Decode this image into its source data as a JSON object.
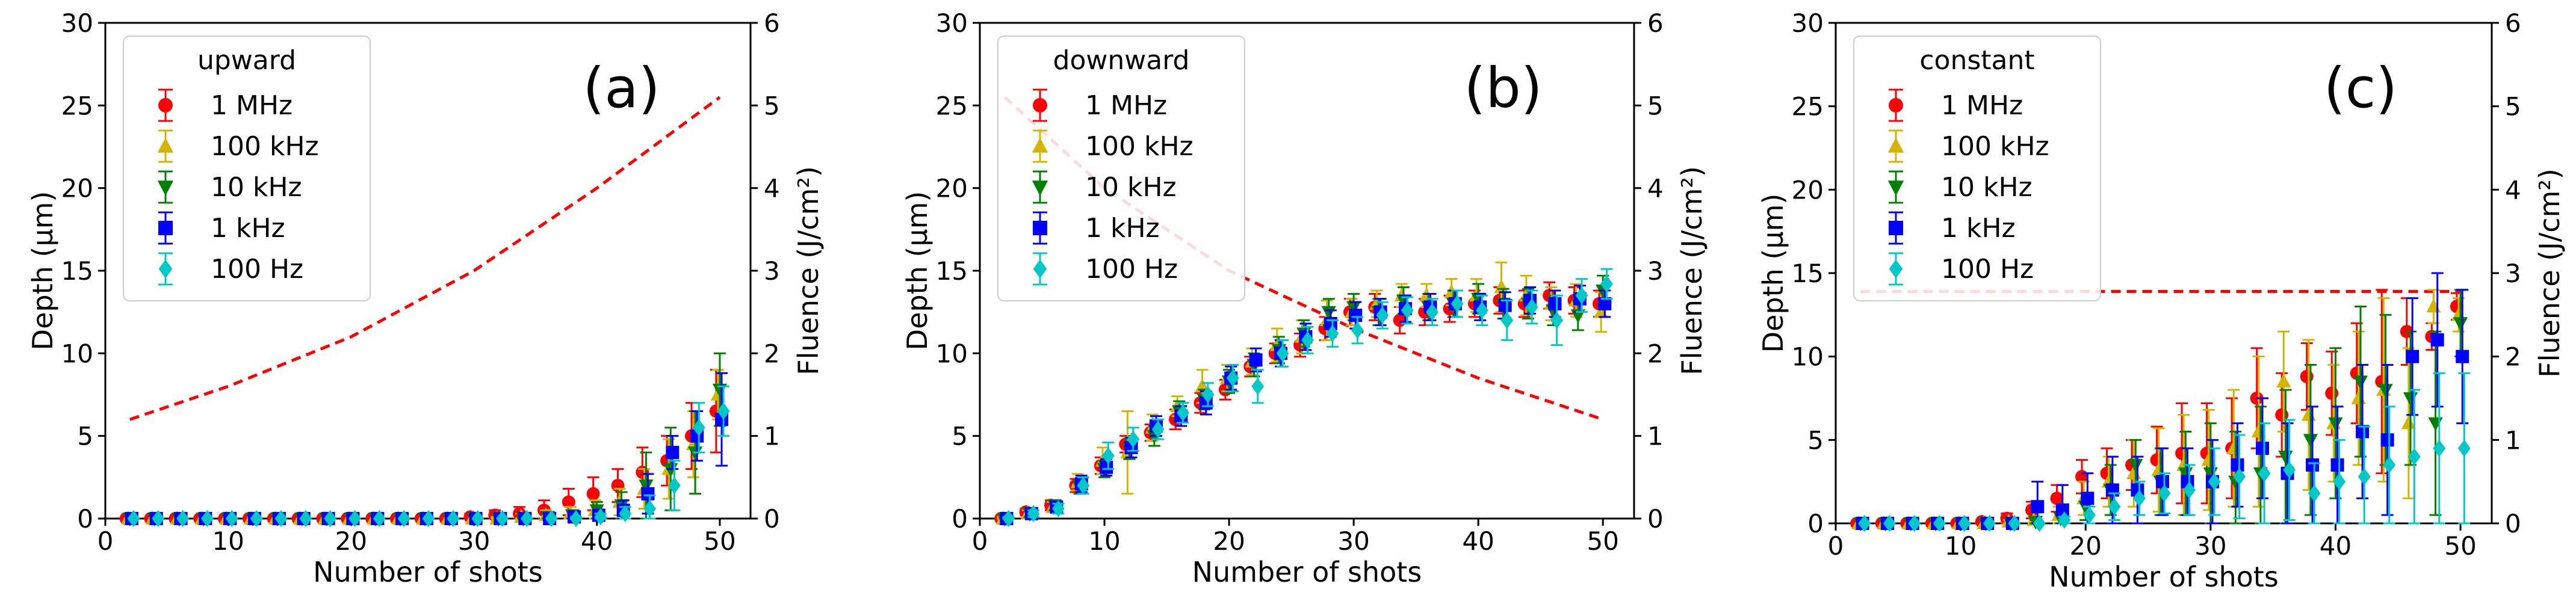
{
  "figure": {
    "colors": {
      "1 MHz": "#ff0000",
      "100 kHz": "#d4b400",
      "10 kHz": "#008000",
      "1 kHz": "#0000ff",
      "100 Hz": "#00c8c8",
      "fluence_line": "#ff0000"
    }
  },
  "chart_data": [
    {
      "type": "scatter",
      "panel_label": "(a)",
      "legend_title": "upward",
      "legend_position": "top-left",
      "xlabel": "Number of shots",
      "ylabel": "Depth (μm)",
      "y2label": "Fluence (J/cm²)",
      "xlim": [
        0,
        52.5
      ],
      "ylim": [
        0,
        30
      ],
      "y2lim": [
        0,
        6
      ],
      "xticks": [
        0,
        10,
        20,
        30,
        40,
        50
      ],
      "yticks": [
        0,
        5,
        10,
        15,
        20,
        25,
        30
      ],
      "y2ticks": [
        0,
        1,
        2,
        3,
        4,
        5,
        6
      ],
      "x": [
        2,
        4,
        6,
        8,
        10,
        12,
        14,
        16,
        18,
        20,
        22,
        24,
        26,
        28,
        30,
        32,
        34,
        36,
        38,
        40,
        42,
        44,
        46,
        48,
        50
      ],
      "series": [
        {
          "name": "1 MHz",
          "marker": "circle",
          "values": [
            0,
            0,
            0,
            0,
            0,
            0,
            0,
            0,
            0,
            0,
            0,
            0,
            0,
            0,
            0.1,
            0.2,
            0.3,
            0.5,
            1.0,
            1.5,
            2.0,
            2.8,
            3.5,
            5.0,
            6.5
          ],
          "errors": [
            0,
            0,
            0,
            0,
            0,
            0,
            0,
            0,
            0,
            0,
            0,
            0,
            0,
            0,
            0.2,
            0.3,
            0.4,
            0.6,
            0.8,
            1.0,
            1.0,
            1.5,
            1.5,
            2.0,
            2.5
          ]
        },
        {
          "name": "100 kHz",
          "marker": "triangle-up",
          "values": [
            0,
            0,
            0,
            0,
            0,
            0,
            0,
            0,
            0,
            0,
            0,
            0,
            0,
            0,
            0,
            0,
            0.1,
            0.2,
            0.3,
            0.5,
            1.0,
            1.8,
            3.0,
            4.5,
            7.5
          ],
          "errors": [
            0,
            0,
            0,
            0,
            0,
            0,
            0,
            0,
            0,
            0,
            0,
            0,
            0,
            0,
            0,
            0.1,
            0.2,
            0.3,
            0.4,
            0.6,
            0.8,
            1.2,
            1.8,
            2.0,
            1.5
          ]
        },
        {
          "name": "10 kHz",
          "marker": "triangle-down",
          "values": [
            0,
            0,
            0,
            0,
            0,
            0,
            0,
            0,
            0,
            0,
            0,
            0,
            0,
            0,
            0,
            0,
            0,
            0.1,
            0.2,
            0.5,
            0.8,
            2.0,
            3.0,
            4.0,
            7.8
          ],
          "errors": [
            0,
            0,
            0,
            0,
            0,
            0,
            0,
            0,
            0,
            0,
            0,
            0,
            0,
            0,
            0,
            0,
            0.1,
            0.2,
            0.3,
            0.5,
            0.8,
            2.0,
            2.5,
            2.5,
            2.2
          ]
        },
        {
          "name": "1 kHz",
          "marker": "square",
          "values": [
            0,
            0,
            0,
            0,
            0,
            0,
            0,
            0,
            0,
            0,
            0,
            0,
            0,
            0,
            0,
            0,
            0,
            0,
            0.1,
            0.2,
            0.5,
            1.5,
            4.0,
            5.0,
            6.0
          ],
          "errors": [
            0,
            0,
            0,
            0,
            0,
            0,
            0,
            0,
            0,
            0,
            0,
            0,
            0,
            0,
            0,
            0,
            0,
            0.1,
            0.2,
            0.3,
            0.6,
            1.2,
            1.0,
            1.5,
            2.8
          ]
        },
        {
          "name": "100 Hz",
          "marker": "diamond",
          "values": [
            0,
            0,
            0,
            0,
            0,
            0,
            0,
            0,
            0,
            0,
            0,
            0,
            0,
            0,
            0,
            0,
            0,
            0,
            0,
            0.1,
            0.3,
            0.6,
            2.0,
            5.5,
            6.5
          ],
          "errors": [
            0,
            0,
            0,
            0,
            0,
            0,
            0,
            0,
            0,
            0,
            0,
            0,
            0,
            0,
            0,
            0,
            0,
            0,
            0.1,
            0.2,
            0.4,
            0.8,
            1.5,
            1.5,
            1.5
          ]
        }
      ],
      "fluence": {
        "x": [
          2,
          10,
          20,
          30,
          40,
          50
        ],
        "values": [
          1.2,
          1.6,
          2.2,
          3.0,
          4.0,
          5.1
        ]
      }
    },
    {
      "type": "scatter",
      "panel_label": "(b)",
      "legend_title": "downward",
      "legend_position": "top-left",
      "xlabel": "Number of shots",
      "ylabel": "Depth (μm)",
      "y2label": "Fluence (J/cm²)",
      "xlim": [
        0,
        52.5
      ],
      "ylim": [
        0,
        30
      ],
      "y2lim": [
        0,
        6
      ],
      "xticks": [
        0,
        10,
        20,
        30,
        40,
        50
      ],
      "yticks": [
        0,
        5,
        10,
        15,
        20,
        25,
        30
      ],
      "y2ticks": [
        0,
        1,
        2,
        3,
        4,
        5,
        6
      ],
      "x": [
        2,
        4,
        6,
        8,
        10,
        12,
        14,
        16,
        18,
        20,
        22,
        24,
        26,
        28,
        30,
        32,
        34,
        36,
        38,
        40,
        42,
        44,
        46,
        48,
        50
      ],
      "series": [
        {
          "name": "1 MHz",
          "marker": "circle",
          "values": [
            0,
            0.4,
            0.8,
            2.0,
            3.2,
            4.5,
            5.2,
            6.0,
            7.0,
            7.8,
            9.2,
            10.0,
            10.5,
            11.5,
            12.5,
            12.8,
            12.0,
            12.5,
            12.7,
            13.0,
            13.2,
            13.0,
            13.5,
            13.2,
            13.0
          ],
          "errors": [
            0.1,
            0.2,
            0.3,
            0.4,
            0.5,
            0.5,
            0.5,
            0.6,
            0.6,
            0.6,
            0.6,
            0.6,
            0.7,
            0.7,
            0.8,
            0.8,
            0.8,
            0.8,
            0.8,
            0.8,
            0.8,
            0.8,
            0.8,
            0.8,
            0.8
          ]
        },
        {
          "name": "100 kHz",
          "marker": "triangle-up",
          "values": [
            0,
            0.3,
            0.7,
            2.2,
            3.5,
            4.0,
            5.5,
            6.8,
            8.0,
            8.5,
            9.5,
            10.5,
            11.0,
            12.0,
            12.5,
            13.0,
            13.5,
            13.5,
            13.7,
            13.5,
            14.0,
            13.5,
            13.0,
            13.2,
            12.5
          ],
          "errors": [
            0.1,
            0.2,
            0.3,
            0.5,
            0.8,
            2.5,
            0.8,
            0.6,
            1.0,
            0.8,
            0.8,
            1.0,
            1.0,
            1.2,
            0.8,
            0.8,
            0.7,
            0.7,
            0.8,
            1.0,
            1.5,
            1.2,
            1.0,
            1.0,
            1.2
          ]
        },
        {
          "name": "10 kHz",
          "marker": "triangle-down",
          "values": [
            0,
            0.3,
            0.8,
            1.9,
            3.0,
            4.2,
            5.0,
            6.5,
            7.2,
            8.3,
            9.3,
            10.2,
            11.2,
            12.5,
            12.8,
            12.5,
            13.2,
            12.8,
            13.0,
            13.3,
            13.0,
            13.0,
            12.6,
            12.3,
            13.8
          ],
          "errors": [
            0.1,
            0.2,
            0.3,
            0.4,
            0.5,
            0.6,
            0.6,
            0.6,
            0.6,
            0.7,
            0.7,
            0.8,
            0.8,
            0.8,
            0.8,
            0.8,
            0.8,
            0.8,
            0.8,
            0.9,
            0.9,
            0.9,
            0.9,
            0.9,
            0.9
          ]
        },
        {
          "name": "1 kHz",
          "marker": "square",
          "values": [
            0,
            0.3,
            0.7,
            2.1,
            3.1,
            4.3,
            5.6,
            6.2,
            7.0,
            8.5,
            9.6,
            10.0,
            11.0,
            11.8,
            12.3,
            12.5,
            12.7,
            12.8,
            13.0,
            12.8,
            12.9,
            13.2,
            13.0,
            13.3,
            13.0
          ],
          "errors": [
            0.1,
            0.2,
            0.3,
            0.5,
            0.5,
            0.6,
            0.6,
            0.6,
            0.7,
            0.7,
            0.7,
            0.8,
            0.8,
            0.8,
            0.8,
            0.8,
            0.8,
            0.8,
            0.8,
            0.8,
            0.8,
            0.8,
            0.8,
            0.8,
            0.8
          ]
        },
        {
          "name": "100 Hz",
          "marker": "diamond",
          "values": [
            0,
            0.3,
            0.6,
            2.0,
            3.8,
            4.8,
            5.4,
            6.4,
            7.5,
            8.5,
            8.0,
            10.0,
            10.8,
            11.2,
            11.4,
            12.3,
            12.6,
            12.5,
            13.0,
            12.6,
            12.0,
            12.8,
            12.0,
            13.5,
            14.2
          ],
          "errors": [
            0.1,
            0.2,
            0.3,
            0.5,
            0.8,
            0.7,
            0.6,
            0.6,
            0.7,
            0.8,
            1.0,
            0.8,
            0.8,
            0.8,
            0.8,
            0.8,
            0.8,
            0.8,
            0.8,
            0.9,
            1.2,
            1.0,
            1.5,
            1.0,
            0.9
          ]
        }
      ],
      "fluence": {
        "x": [
          2,
          10,
          20,
          30,
          40,
          50
        ],
        "values": [
          5.1,
          4.0,
          3.0,
          2.3,
          1.7,
          1.2
        ]
      }
    },
    {
      "type": "scatter",
      "panel_label": "(c)",
      "legend_title": "constant",
      "legend_position": "top-left",
      "xlabel": "Number of shots",
      "ylabel": "Depth (μm)",
      "y2label": "Fluence (J/cm²)",
      "xlim": [
        0,
        52.5
      ],
      "ylim": [
        0,
        30
      ],
      "y2lim": [
        0,
        6
      ],
      "xticks": [
        0,
        10,
        20,
        30,
        40,
        50
      ],
      "yticks": [
        0,
        5,
        10,
        15,
        20,
        25,
        30
      ],
      "y2ticks": [
        0,
        1,
        2,
        3,
        4,
        5,
        6
      ],
      "x": [
        2,
        4,
        6,
        8,
        10,
        12,
        14,
        16,
        18,
        20,
        22,
        24,
        26,
        28,
        30,
        32,
        34,
        36,
        38,
        40,
        42,
        44,
        46,
        48,
        50
      ],
      "series": [
        {
          "name": "1 MHz",
          "marker": "circle",
          "values": [
            0,
            0,
            0,
            0,
            0,
            0.1,
            0.3,
            0.8,
            1.5,
            2.8,
            3.0,
            3.5,
            3.8,
            4.2,
            4.2,
            4.5,
            7.5,
            6.5,
            8.8,
            7.8,
            9.0,
            8.5,
            11.5,
            11.2,
            13.0
          ],
          "errors": [
            0,
            0,
            0,
            0,
            0,
            0.1,
            0.3,
            0.5,
            0.8,
            1.0,
            1.5,
            1.5,
            2.0,
            3.0,
            3.0,
            3.0,
            3.0,
            2.5,
            2.0,
            2.5,
            3.0,
            5.5,
            2.0,
            0.8,
            0.8
          ]
        },
        {
          "name": "100 kHz",
          "marker": "triangle-up",
          "values": [
            0,
            0,
            0,
            0,
            0,
            0,
            0.1,
            0.2,
            0.5,
            1.5,
            2.5,
            3.0,
            3.2,
            3.5,
            3.8,
            4.5,
            5.5,
            8.5,
            6.5,
            6.0,
            7.5,
            8.0,
            6.0,
            13.0,
            12.5
          ],
          "errors": [
            0,
            0,
            0,
            0,
            0,
            0,
            0.1,
            0.2,
            0.5,
            1.0,
            1.5,
            2.0,
            2.5,
            3.0,
            3.0,
            3.5,
            4.5,
            3.0,
            4.5,
            3.5,
            4.0,
            5.5,
            4.5,
            1.0,
            1.0
          ]
        },
        {
          "name": "10 kHz",
          "marker": "triangle-down",
          "values": [
            0,
            0,
            0,
            0,
            0,
            0,
            0,
            0.1,
            0.3,
            1.0,
            2.0,
            3.5,
            2.5,
            3.0,
            3.0,
            2.5,
            3.0,
            4.0,
            5.0,
            6.0,
            8.5,
            8.0,
            7.5,
            6.0,
            12.0
          ],
          "errors": [
            0,
            0,
            0,
            0,
            0,
            0,
            0,
            0.1,
            0.3,
            0.8,
            1.5,
            1.5,
            2.0,
            2.5,
            3.0,
            3.0,
            4.0,
            4.0,
            4.5,
            4.5,
            4.5,
            4.5,
            4.0,
            5.5,
            2.0
          ]
        },
        {
          "name": "1 kHz",
          "marker": "square",
          "values": [
            0,
            0,
            0,
            0,
            0,
            0,
            0,
            1.0,
            0.8,
            1.5,
            2.0,
            2.0,
            2.5,
            2.5,
            2.5,
            3.5,
            4.5,
            3.0,
            3.5,
            3.5,
            5.5,
            5.0,
            10.0,
            11.0,
            10.0
          ],
          "errors": [
            0,
            0,
            0,
            0,
            0,
            0,
            0,
            1.5,
            1.5,
            1.5,
            2.0,
            2.0,
            2.0,
            2.0,
            2.5,
            2.5,
            3.0,
            3.0,
            3.5,
            3.5,
            4.0,
            4.5,
            3.5,
            4.0,
            4.0
          ]
        },
        {
          "name": "100 Hz",
          "marker": "diamond",
          "values": [
            0,
            0,
            0,
            0,
            0,
            0,
            0,
            0,
            0.2,
            0.5,
            1.0,
            1.5,
            1.8,
            2.0,
            2.5,
            2.8,
            3.0,
            3.2,
            1.8,
            2.5,
            2.8,
            3.5,
            4.0,
            4.5,
            4.5
          ],
          "errors": [
            0,
            0,
            0,
            0,
            0,
            0,
            0,
            0,
            0.2,
            0.5,
            0.8,
            1.0,
            1.2,
            1.5,
            2.0,
            2.5,
            3.0,
            3.0,
            1.8,
            2.5,
            3.0,
            3.5,
            4.0,
            4.5,
            4.5
          ]
        }
      ],
      "fluence": {
        "x": [
          2,
          50
        ],
        "values": [
          2.78,
          2.78
        ]
      }
    }
  ]
}
